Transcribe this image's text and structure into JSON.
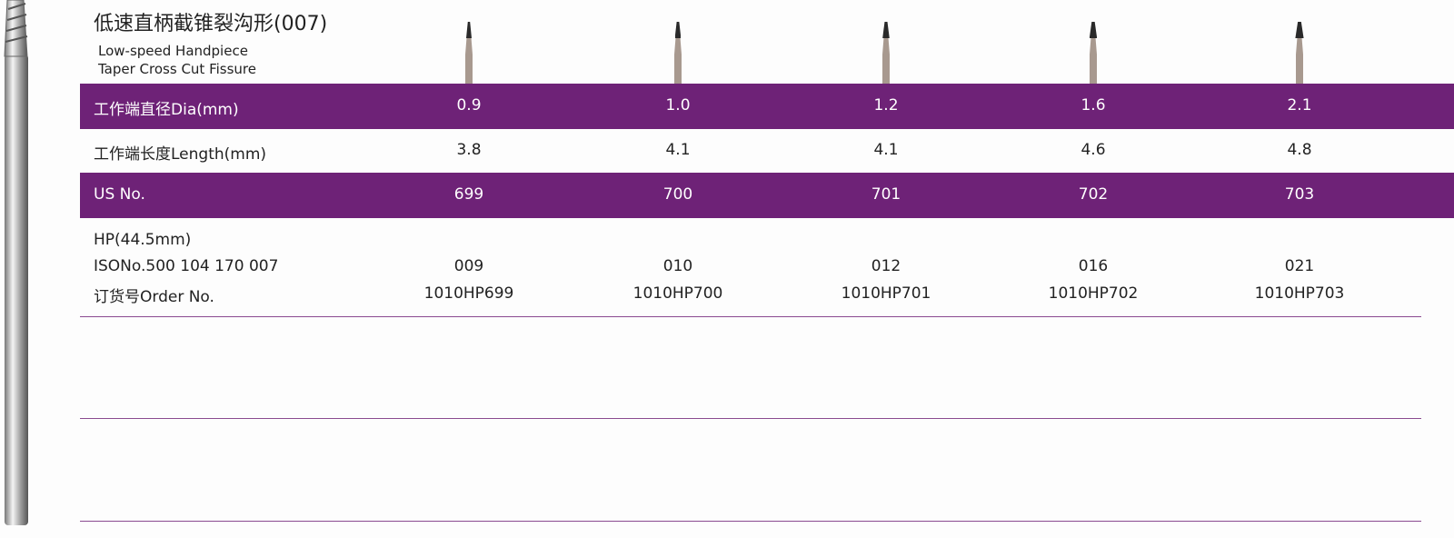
{
  "header": {
    "title": "低速直柄截锥裂沟形(007)",
    "subtitle": [
      "Low-speed Handpiece",
      "Taper Cross Cut Fissure"
    ]
  },
  "table": {
    "rows": [
      {
        "label": [
          "工作端直径Dia(mm)"
        ],
        "cells": [
          [
            "0.9"
          ],
          [
            "1.0"
          ],
          [
            "1.2"
          ],
          [
            "1.6"
          ],
          [
            "2.1"
          ]
        ]
      },
      {
        "label": [
          "工作端长度Length(mm)"
        ],
        "cells": [
          [
            "3.8"
          ],
          [
            "4.1"
          ],
          [
            "4.1"
          ],
          [
            "4.6"
          ],
          [
            "4.8"
          ]
        ]
      },
      {
        "label": [
          "US No."
        ],
        "cells": [
          [
            "699"
          ],
          [
            "700"
          ],
          [
            "701"
          ],
          [
            "702"
          ],
          [
            "703"
          ]
        ]
      },
      {
        "label": [
          "HP(44.5mm)",
          "ISONo.500 104 170 007",
          "订货号Order No."
        ],
        "cells": [
          [
            "009",
            "1010HP699"
          ],
          [
            "010",
            "1010HP700"
          ],
          [
            "012",
            "1010HP701"
          ],
          [
            "016",
            "1010HP702"
          ],
          [
            "021",
            "1010HP703"
          ]
        ]
      }
    ]
  }
}
